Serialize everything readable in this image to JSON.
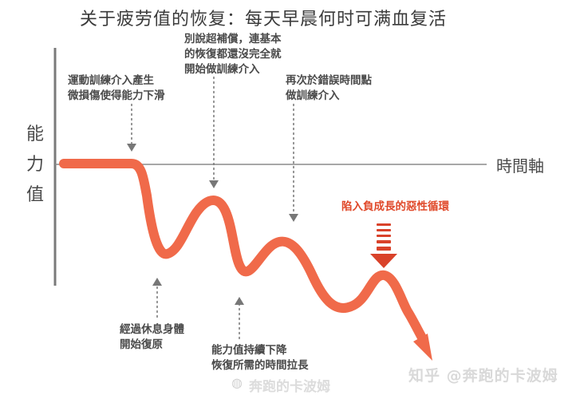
{
  "title": "关于疲劳值的恢复：每天早晨何时可满血复活",
  "axes": {
    "y_label": "能力值",
    "x_label": "時間軸"
  },
  "annotations": {
    "a1": [
      "運動訓練介入產生",
      "微損傷使得能力下滑"
    ],
    "a2": [
      "別說超補償，連基本",
      "的恢復都還沒完全就",
      "開始做訓練介入"
    ],
    "a3": [
      "再次於錯誤時間點",
      "做訓練介入"
    ],
    "a4": [
      "經過休息身體",
      "開始復原"
    ],
    "a5": [
      "能力值持續下降",
      "恢復所需的時間拉長"
    ],
    "a6": [
      "陷入負成長的惡性循環"
    ]
  },
  "colors": {
    "curve": "#f06a4a",
    "arrow": "#d9422a",
    "axis": "#7a7a7a"
  },
  "watermark": {
    "zhihu": "知乎 @奔跑的卡波姆",
    "weibo": "奔跑的卡波姆"
  }
}
